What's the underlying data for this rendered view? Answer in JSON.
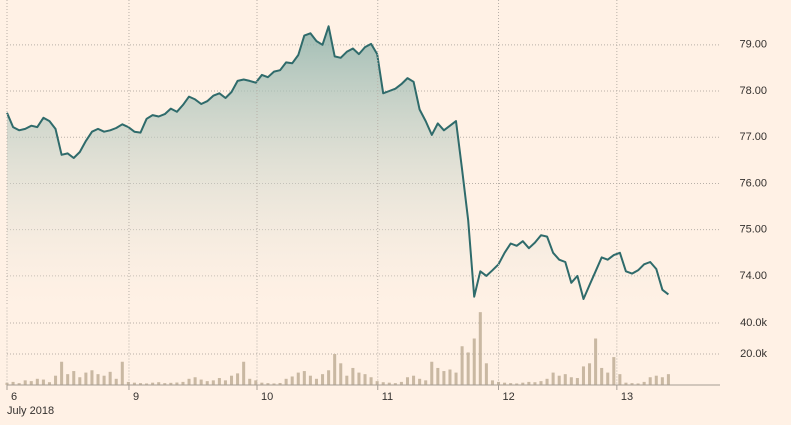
{
  "chart_data": [
    {
      "type": "line",
      "color": "#2f6b6b",
      "values": [
        77.53,
        77.22,
        77.15,
        77.18,
        77.25,
        77.22,
        77.42,
        77.35,
        77.18,
        76.62,
        76.65,
        76.55,
        76.68,
        76.92,
        77.12,
        77.18,
        77.12,
        77.15,
        77.2,
        77.28,
        77.22,
        77.12,
        77.1,
        77.4,
        77.48,
        77.45,
        77.5,
        77.62,
        77.55,
        77.7,
        77.88,
        77.82,
        77.72,
        77.78,
        77.9,
        77.95,
        77.85,
        77.98,
        78.22,
        78.25,
        78.22,
        78.18,
        78.35,
        78.3,
        78.42,
        78.45,
        78.62,
        78.6,
        78.78,
        79.2,
        79.25,
        79.08,
        79.0,
        79.4,
        78.75,
        78.72,
        78.85,
        78.92,
        78.8,
        78.95,
        79.02,
        78.8,
        77.95,
        78.0,
        78.05,
        78.15,
        78.28,
        78.2,
        77.6,
        77.35,
        77.05,
        77.3,
        77.15,
        77.25,
        77.35,
        76.3,
        75.2,
        73.55,
        74.1,
        74.0,
        74.12,
        74.25,
        74.5,
        74.7,
        74.65,
        74.75,
        74.6,
        74.72,
        74.88,
        74.85,
        74.5,
        74.35,
        74.3,
        73.85,
        74.0,
        73.5,
        73.8,
        74.1,
        74.4,
        74.35,
        74.45,
        74.5,
        74.1,
        74.05,
        74.12,
        74.25,
        74.3,
        74.15,
        73.7,
        73.6
      ],
      "xlim": [
        0,
        117.5
      ],
      "ylim": [
        73.37,
        79.97
      ],
      "yticks": [
        {
          "value": 74,
          "label": "74.00"
        },
        {
          "value": 75,
          "label": "75.00"
        },
        {
          "value": 76,
          "label": "76.00"
        },
        {
          "value": 77,
          "label": "77.00"
        },
        {
          "value": 78,
          "label": "78.00"
        },
        {
          "value": 79,
          "label": "79.00"
        }
      ],
      "grid": true
    },
    {
      "type": "bar",
      "color": "#c9b8a2",
      "values": [
        1500,
        2000,
        1200,
        3000,
        2500,
        4000,
        3500,
        1800,
        6000,
        15000,
        7000,
        9000,
        5000,
        8000,
        9500,
        7000,
        6000,
        8500,
        4000,
        15000,
        2000,
        1500,
        1200,
        1000,
        1500,
        1800,
        1200,
        1400,
        1600,
        2000,
        4000,
        5000,
        3500,
        2500,
        3000,
        4500,
        3000,
        6000,
        7500,
        15000,
        4000,
        3000,
        1500,
        1200,
        1000,
        1300,
        4000,
        5500,
        8000,
        9000,
        6000,
        4000,
        7000,
        9500,
        20000,
        14000,
        6000,
        11000,
        8000,
        7000,
        5000,
        2500,
        1800,
        1500,
        1200,
        2000,
        5000,
        6000,
        4000,
        3000,
        15000,
        11000,
        9000,
        10000,
        8000,
        25000,
        21000,
        30000,
        47000,
        14000,
        3000,
        2000,
        1500,
        1200,
        1000,
        1500,
        2000,
        1800,
        2500,
        4000,
        8000,
        6000,
        7000,
        5000,
        4500,
        12000,
        14000,
        30000,
        11000,
        8000,
        18000,
        7000,
        1500,
        1200,
        1000,
        2000,
        5000,
        6000,
        5000,
        7000
      ],
      "xlim": [
        0,
        117.5
      ],
      "ylim": [
        0,
        50000
      ],
      "yticks": [
        {
          "value": 20000,
          "label": "20.0k"
        },
        {
          "value": 40000,
          "label": "40.0k"
        }
      ],
      "xticks": [
        {
          "value": 0,
          "label": "6"
        },
        {
          "value": 20.1,
          "label": "9"
        },
        {
          "value": 41.2,
          "label": "10"
        },
        {
          "value": 61.1,
          "label": "11"
        },
        {
          "value": 81,
          "label": "12"
        },
        {
          "value": 100.5,
          "label": "13"
        }
      ],
      "x_label": "July 2018",
      "grid": true
    }
  ]
}
